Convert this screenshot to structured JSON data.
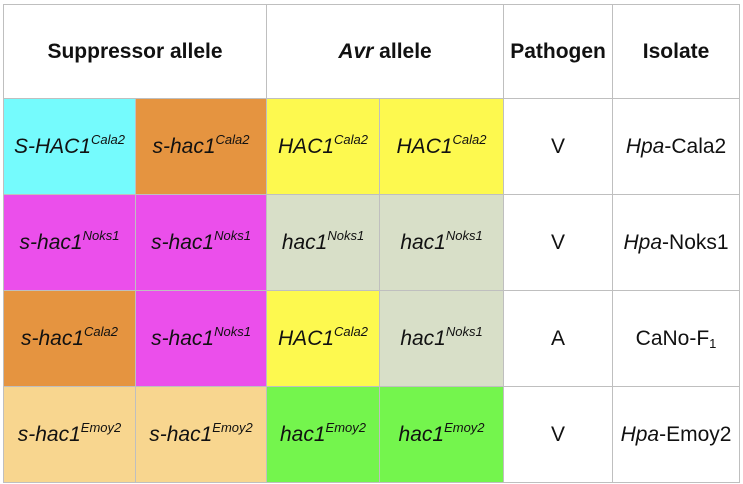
{
  "colors": {
    "cyan": "#75fbfd",
    "orange": "#e59440",
    "yellow": "#fdf94f",
    "magenta": "#eb4feb",
    "sage": "#d8dfc8",
    "peach": "#f8d68f",
    "green": "#74f54d",
    "border": "#bfbfbf"
  },
  "header": {
    "suppressor": "Suppressor allele",
    "avr_italic": "Avr",
    "avr_rest": " allele",
    "pathogen": "Pathogen",
    "isolate": "Isolate"
  },
  "rows": [
    {
      "s1": {
        "base": "S-HAC1",
        "sup": "Cala2",
        "color": "cyan"
      },
      "s2": {
        "base": "s-hac1",
        "sup": "Cala2",
        "color": "orange"
      },
      "a1": {
        "base": "HAC1",
        "sup": "Cala2",
        "color": "yellow"
      },
      "a2": {
        "base": "HAC1",
        "sup": "Cala2",
        "color": "yellow"
      },
      "pathogen": "V",
      "isolate_italic": "Hpa",
      "isolate_rest": "-Cala2"
    },
    {
      "s1": {
        "base": "s-hac1",
        "sup": "Noks1",
        "color": "magenta"
      },
      "s2": {
        "base": "s-hac1",
        "sup": "Noks1",
        "color": "magenta"
      },
      "a1": {
        "base": "hac1",
        "sup": "Noks1",
        "color": "sage"
      },
      "a2": {
        "base": "hac1",
        "sup": "Noks1",
        "color": "sage"
      },
      "pathogen": "V",
      "isolate_italic": "Hpa",
      "isolate_rest": "-Noks1"
    },
    {
      "s1": {
        "base": "s-hac1",
        "sup": "Cala2",
        "color": "orange"
      },
      "s2": {
        "base": "s-hac1",
        "sup": "Noks1",
        "color": "magenta"
      },
      "a1": {
        "base": "HAC1",
        "sup": "Cala2",
        "color": "yellow"
      },
      "a2": {
        "base": "hac1",
        "sup": "Noks1",
        "color": "sage"
      },
      "pathogen": "A",
      "isolate_plain": "CaNo-F",
      "isolate_sub": "1"
    },
    {
      "s1": {
        "base": "s-hac1",
        "sup": "Emoy2",
        "color": "peach"
      },
      "s2": {
        "base": "s-hac1",
        "sup": "Emoy2",
        "color": "peach"
      },
      "a1": {
        "base": "hac1",
        "sup": "Emoy2",
        "color": "green"
      },
      "a2": {
        "base": "hac1",
        "sup": "Emoy2",
        "color": "green"
      },
      "pathogen": "V",
      "isolate_italic": "Hpa",
      "isolate_rest": "-Emoy2"
    }
  ]
}
